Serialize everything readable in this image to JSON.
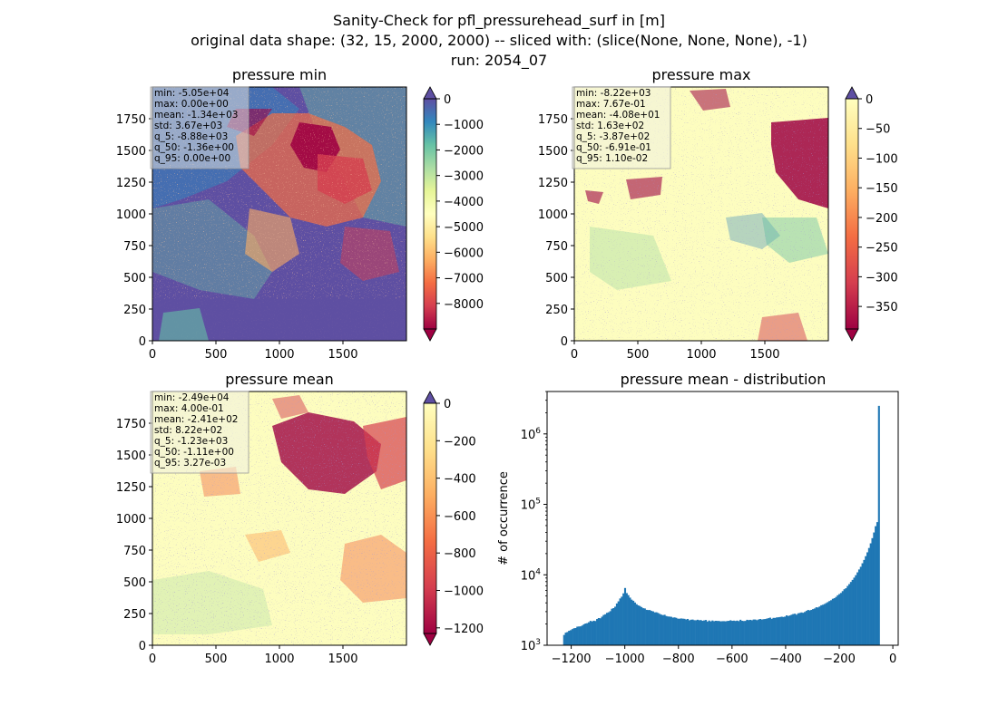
{
  "figure": {
    "title_lines": [
      "Sanity-Check for pfl_pressurehead_surf in [m]",
      "original data shape: (32, 15, 2000, 2000) -- sliced with: (slice(None, None, None), -1)",
      "run: 2054_07"
    ]
  },
  "chart_data": [
    {
      "type": "heatmap",
      "title": "pressure min",
      "x_ticks": [
        0,
        500,
        1000,
        1500
      ],
      "y_ticks": [
        0,
        250,
        500,
        750,
        1000,
        1250,
        1500,
        1750
      ],
      "xlim": [
        0,
        2000
      ],
      "ylim": [
        0,
        2000
      ],
      "colormap": "Spectral",
      "colorbar": {
        "range": [
          -9000,
          0
        ],
        "ticks": [
          0,
          -1000,
          -2000,
          -3000,
          -4000,
          -5000,
          -6000,
          -7000,
          -8000
        ],
        "extend": "both"
      },
      "stats": [
        "min: -5.05e+04",
        "max: 0.00e+00",
        "mean: -1.34e+03",
        "std: 3.67e+03",
        "q_5: -8.88e+03",
        "q_50: -1.36e+00",
        "q_95: 0.00e+00"
      ]
    },
    {
      "type": "heatmap",
      "title": "pressure max",
      "x_ticks": [
        0,
        500,
        1000,
        1500
      ],
      "y_ticks": [
        0,
        250,
        500,
        750,
        1000,
        1250,
        1500,
        1750
      ],
      "xlim": [
        0,
        2000
      ],
      "ylim": [
        0,
        2000
      ],
      "colormap": "Spectral",
      "colorbar": {
        "range": [
          -388,
          0
        ],
        "ticks": [
          0,
          -50,
          -100,
          -150,
          -200,
          -250,
          -300,
          -350
        ],
        "extend": "both"
      },
      "stats": [
        "min: -8.22e+03",
        "max: 7.67e-01",
        "mean: -4.08e+01",
        "std: 1.63e+02",
        "q_5: -3.87e+02",
        "q_50: -6.91e-01",
        "q_95: 1.10e-02"
      ]
    },
    {
      "type": "heatmap",
      "title": "pressure mean",
      "x_ticks": [
        0,
        500,
        1000,
        1500
      ],
      "y_ticks": [
        0,
        250,
        500,
        750,
        1000,
        1250,
        1500,
        1750
      ],
      "xlim": [
        0,
        2000
      ],
      "ylim": [
        0,
        2000
      ],
      "colormap": "Spectral",
      "colorbar": {
        "range": [
          -1230,
          0
        ],
        "ticks": [
          0,
          -200,
          -400,
          -600,
          -800,
          -1000,
          -1200
        ],
        "extend": "both"
      },
      "stats": [
        "min: -2.49e+04",
        "max: 4.00e-01",
        "mean: -2.41e+02",
        "std: 8.22e+02",
        "q_5: -1.23e+03",
        "q_50: -1.11e+00",
        "q_95: 3.27e-03"
      ]
    },
    {
      "type": "bar",
      "title": "pressure mean - distribution",
      "ylabel": "# of occurrence",
      "y_scale": "log",
      "xlim": [
        -1290,
        20
      ],
      "ylim": [
        1000,
        4000000
      ],
      "x_ticks": [
        "−1200",
        "−1000",
        "−800",
        "−600",
        "−400",
        "−200",
        "0"
      ],
      "x_tick_values": [
        -1200,
        -1000,
        -800,
        -600,
        -400,
        -200,
        0
      ],
      "y_ticks": [
        {
          "value": 1000,
          "base": "10",
          "exp": "3"
        },
        {
          "value": 10000,
          "base": "10",
          "exp": "4"
        },
        {
          "value": 100000,
          "base": "10",
          "exp": "5"
        },
        {
          "value": 1000000,
          "base": "10",
          "exp": "6"
        }
      ],
      "bin_width": 6.15,
      "bin_centers": [
        -1226.9,
        -1220.8,
        -1214.6,
        -1208.5,
        -1202.3,
        -1196.2,
        -1190.0,
        -1183.9,
        -1177.7,
        -1171.6,
        -1165.4,
        -1159.3,
        -1153.1,
        -1147.0,
        -1140.8,
        -1134.7,
        -1128.5,
        -1122.4,
        -1116.2,
        -1110.1,
        -1103.9,
        -1097.8,
        -1091.6,
        -1085.5,
        -1079.3,
        -1073.2,
        -1067.0,
        -1060.9,
        -1054.7,
        -1048.6,
        -1042.4,
        -1036.3,
        -1030.1,
        -1024.0,
        -1017.8,
        -1011.7,
        -1005.5,
        -999.4,
        -993.2,
        -987.1,
        -980.9,
        -974.8,
        -968.6,
        -962.5,
        -956.3,
        -950.2,
        -944.0,
        -937.9,
        -931.7,
        -925.6,
        -919.4,
        -913.3,
        -907.1,
        -901.0,
        -894.8,
        -888.7,
        -882.5,
        -876.4,
        -870.2,
        -864.1,
        -857.9,
        -851.8,
        -845.6,
        -839.5,
        -833.3,
        -827.2,
        -821.0,
        -814.9,
        -808.7,
        -802.6,
        -796.4,
        -790.3,
        -784.1,
        -778.0,
        -771.8,
        -765.7,
        -759.5,
        -753.4,
        -747.2,
        -741.1,
        -734.9,
        -728.8,
        -722.6,
        -716.5,
        -710.3,
        -704.2,
        -698.0,
        -691.9,
        -685.7,
        -679.6,
        -673.4,
        -667.3,
        -661.1,
        -655.0,
        -648.8,
        -642.7,
        -636.5,
        -630.4,
        -624.2,
        -618.1,
        -611.9,
        -605.8,
        -599.6,
        -593.5,
        -587.3,
        -581.2,
        -575.0,
        -568.9,
        -562.7,
        -556.6,
        -550.4,
        -544.3,
        -538.1,
        -532.0,
        -525.8,
        -519.7,
        -513.5,
        -507.4,
        -501.2,
        -495.1,
        -488.9,
        -482.8,
        -476.6,
        -470.5,
        -464.3,
        -458.2,
        -452.0,
        -445.9,
        -439.7,
        -433.6,
        -427.4,
        -421.3,
        -415.1,
        -409.0,
        -402.8,
        -396.7,
        -390.5,
        -384.4,
        -378.2,
        -372.1,
        -365.9,
        -359.8,
        -353.6,
        -347.5,
        -341.3,
        -335.2,
        -329.0,
        -322.9,
        -316.7,
        -310.6,
        -304.4,
        -298.3,
        -292.1,
        -286.0,
        -279.8,
        -273.7,
        -267.5,
        -261.4,
        -255.2,
        -249.1,
        -242.9,
        -236.8,
        -230.6,
        -224.5,
        -218.3,
        -212.2,
        -206.0,
        -199.9,
        -193.7,
        -187.6,
        -181.4,
        -175.3,
        -169.1,
        -163.0,
        -156.8,
        -150.7,
        -144.5,
        -138.4,
        -132.2,
        -126.1,
        -119.9,
        -113.8,
        -107.6,
        -101.5,
        -95.3,
        -89.2,
        -83.0,
        -76.9,
        -70.7,
        -64.6,
        -58.4,
        -52.3,
        -46.1,
        -40.0,
        -33.8,
        -27.7,
        -21.5,
        -15.4,
        -9.2,
        -3.1
      ],
      "counts": [
        1400,
        1511,
        1540,
        1604,
        1637,
        1696,
        1743,
        1756,
        1838,
        1847,
        1855,
        1906,
        1984,
        2036,
        2058,
        2122,
        2218,
        2179,
        2231,
        2207,
        2359,
        2433,
        2416,
        2546,
        2692,
        2751,
        2882,
        2938,
        3047,
        3300,
        3369,
        3530,
        3917,
        4200,
        4617,
        4895,
        5456,
        6500,
        5500,
        5144,
        4747,
        4442,
        4282,
        4043,
        3827,
        3684,
        3601,
        3479,
        3357,
        3331,
        3182,
        3162,
        3161,
        3072,
        3028,
        2931,
        2939,
        2875,
        2789,
        2719,
        2677,
        2709,
        2599,
        2562,
        2551,
        2536,
        2468,
        2488,
        2451,
        2386,
        2380,
        2402,
        2386,
        2373,
        2325,
        2363,
        2258,
        2305,
        2317,
        2269,
        2263,
        2302,
        2266,
        2279,
        2223,
        2256,
        2285,
        2171,
        2245,
        2182,
        2247,
        2196,
        2224,
        2216,
        2212,
        2185,
        2197,
        2198,
        2187,
        2211,
        2223,
        2264,
        2222,
        2236,
        2213,
        2239,
        2201,
        2301,
        2223,
        2209,
        2217,
        2298,
        2274,
        2296,
        2263,
        2320,
        2319,
        2270,
        2323,
        2360,
        2319,
        2344,
        2358,
        2390,
        2423,
        2465,
        2370,
        2446,
        2444,
        2484,
        2496,
        2515,
        2543,
        2518,
        2549,
        2654,
        2604,
        2649,
        2713,
        2774,
        2804,
        2717,
        2840,
        2878,
        2923,
        2891,
        2966,
        3076,
        3172,
        3122,
        3176,
        3259,
        3325,
        3458,
        3440,
        3547,
        3696,
        3756,
        3849,
        3971,
        4100,
        4244,
        4359,
        4567,
        4660,
        4855,
        5125,
        5328,
        5527,
        5861,
        6237,
        6451,
        6946,
        7380,
        7916,
        8469,
        9115,
        9876,
        10839,
        11908,
        13002,
        14581,
        16257,
        18391,
        20852,
        24034,
        27974,
        33146,
        39876,
        49000,
        56000,
        2500000
      ]
    }
  ]
}
